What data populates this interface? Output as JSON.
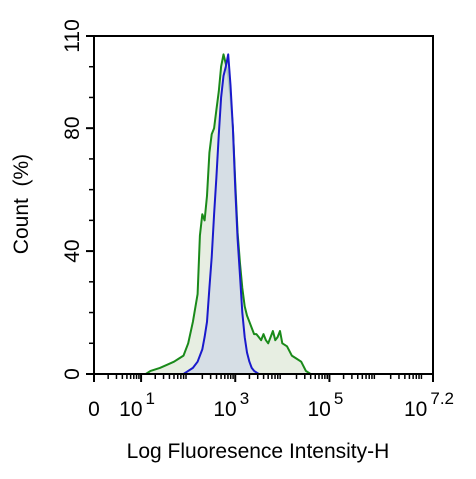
{
  "chart_data": {
    "type": "area",
    "title": "",
    "xlabel": "Log Fluoresence Intensity-H",
    "ylabel": "Count  (%)",
    "x_scale": "log-biexponential",
    "xlim": [
      0,
      7.2
    ],
    "ylim": [
      0,
      110
    ],
    "grid": false,
    "legend": "none",
    "y_ticks": [
      {
        "value": 0,
        "label": "0"
      },
      {
        "value": 40,
        "label": "40"
      },
      {
        "value": 80,
        "label": "80"
      },
      {
        "value": 110,
        "label": "110"
      }
    ],
    "x_ticks": [
      {
        "value": 0,
        "base": "0",
        "exp": ""
      },
      {
        "value": 1,
        "base": "10",
        "exp": "1"
      },
      {
        "value": 3,
        "base": "10",
        "exp": "3"
      },
      {
        "value": 5,
        "base": "10",
        "exp": "5"
      },
      {
        "value": 7.2,
        "base": "10",
        "exp": "7.2"
      }
    ],
    "series": [
      {
        "color": "#1a8a1a",
        "fill": "#dfe8d8",
        "points": [
          [
            1.1,
            0
          ],
          [
            1.2,
            1
          ],
          [
            1.4,
            2
          ],
          [
            1.55,
            3
          ],
          [
            1.7,
            4
          ],
          [
            1.8,
            5
          ],
          [
            1.9,
            6
          ],
          [
            2.0,
            10
          ],
          [
            2.1,
            17
          ],
          [
            2.2,
            26
          ],
          [
            2.25,
            45
          ],
          [
            2.3,
            52
          ],
          [
            2.35,
            50
          ],
          [
            2.4,
            58
          ],
          [
            2.45,
            72
          ],
          [
            2.5,
            78
          ],
          [
            2.55,
            80
          ],
          [
            2.6,
            86
          ],
          [
            2.65,
            92
          ],
          [
            2.7,
            100
          ],
          [
            2.75,
            104
          ],
          [
            2.8,
            101
          ],
          [
            2.85,
            97
          ],
          [
            2.9,
            90
          ],
          [
            2.95,
            80
          ],
          [
            3.0,
            62
          ],
          [
            3.05,
            46
          ],
          [
            3.1,
            36
          ],
          [
            3.15,
            28
          ],
          [
            3.2,
            22
          ],
          [
            3.25,
            19
          ],
          [
            3.3,
            17
          ],
          [
            3.35,
            15
          ],
          [
            3.4,
            13
          ],
          [
            3.45,
            13
          ],
          [
            3.5,
            12
          ],
          [
            3.55,
            11
          ],
          [
            3.6,
            13
          ],
          [
            3.65,
            11
          ],
          [
            3.7,
            10
          ],
          [
            3.75,
            12
          ],
          [
            3.8,
            14
          ],
          [
            3.85,
            11
          ],
          [
            3.9,
            12
          ],
          [
            3.95,
            14
          ],
          [
            4.0,
            10
          ],
          [
            4.1,
            9
          ],
          [
            4.2,
            6
          ],
          [
            4.3,
            5
          ],
          [
            4.4,
            4
          ],
          [
            4.5,
            1
          ],
          [
            4.6,
            0
          ]
        ]
      },
      {
        "color": "#1a1acc",
        "fill": "#d2dae6",
        "points": [
          [
            1.9,
            0
          ],
          [
            2.0,
            1
          ],
          [
            2.1,
            2
          ],
          [
            2.2,
            4
          ],
          [
            2.3,
            8
          ],
          [
            2.35,
            12
          ],
          [
            2.4,
            17
          ],
          [
            2.45,
            28
          ],
          [
            2.5,
            38
          ],
          [
            2.55,
            52
          ],
          [
            2.6,
            64
          ],
          [
            2.65,
            78
          ],
          [
            2.7,
            90
          ],
          [
            2.75,
            97
          ],
          [
            2.8,
            100
          ],
          [
            2.85,
            104
          ],
          [
            2.9,
            94
          ],
          [
            2.95,
            80
          ],
          [
            3.0,
            60
          ],
          [
            3.05,
            44
          ],
          [
            3.1,
            32
          ],
          [
            3.15,
            20
          ],
          [
            3.2,
            12
          ],
          [
            3.25,
            7
          ],
          [
            3.3,
            4
          ],
          [
            3.35,
            2
          ],
          [
            3.4,
            1
          ],
          [
            3.5,
            0
          ]
        ]
      }
    ]
  }
}
